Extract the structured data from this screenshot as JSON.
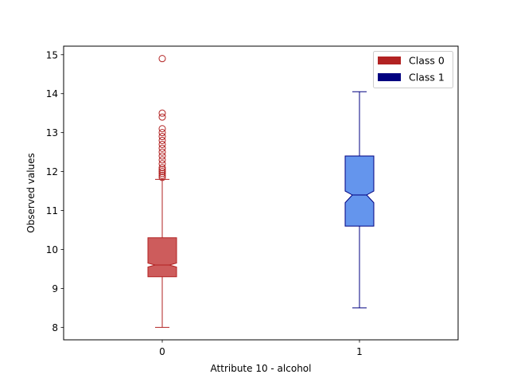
{
  "chart_data": {
    "type": "boxplot",
    "title": "",
    "xlabel": "Attribute 10 - alcohol",
    "ylabel": "Observed values",
    "ylim": [
      7.68,
      15.22
    ],
    "y_ticks": [
      8,
      9,
      10,
      11,
      12,
      13,
      14,
      15
    ],
    "x_tick_labels": [
      "0",
      "1"
    ],
    "notched": true,
    "grid": false,
    "legend": {
      "position": "top-right",
      "entries": [
        {
          "label": "Class 0",
          "color": "#b22222"
        },
        {
          "label": "Class 1",
          "color": "#000080"
        }
      ]
    },
    "series": [
      {
        "category": "0",
        "whisker_low": 8.0,
        "q1": 9.3,
        "notch_low": 9.55,
        "median": 9.6,
        "notch_high": 9.65,
        "q3": 10.3,
        "whisker_high": 11.8,
        "fliers": [
          11.85,
          11.9,
          11.95,
          12.0,
          12.05,
          12.1,
          12.2,
          12.3,
          12.4,
          12.5,
          12.6,
          12.7,
          12.8,
          12.9,
          13.0,
          13.1,
          13.4,
          13.5,
          14.9
        ],
        "face_color": "#cd5c5c",
        "edge_color": "#b22222"
      },
      {
        "category": "1",
        "whisker_low": 8.5,
        "q1": 10.6,
        "notch_low": 11.2,
        "median": 11.4,
        "notch_high": 11.5,
        "q3": 12.4,
        "whisker_high": 14.05,
        "fliers": [],
        "face_color": "#6495ed",
        "edge_color": "#000080"
      }
    ]
  }
}
